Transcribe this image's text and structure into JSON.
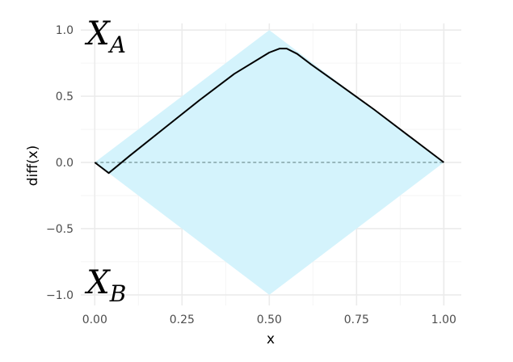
{
  "chart_data": {
    "type": "line",
    "xlabel": "x",
    "ylabel": "diff(x)",
    "xlim": [
      -0.04,
      1.05
    ],
    "ylim": [
      -1.08,
      1.05
    ],
    "x_ticks": [
      0.0,
      0.25,
      0.5,
      0.75,
      1.0
    ],
    "x_tick_labels": [
      "0.00",
      "0.25",
      "0.50",
      "0.75",
      "1.00"
    ],
    "y_ticks": [
      -1.0,
      -0.5,
      0.0,
      0.5,
      1.0
    ],
    "y_tick_labels": [
      "−1.0",
      "−0.5",
      "0.0",
      "0.5",
      "1.0"
    ],
    "grid": true,
    "region_labels": [
      {
        "base": "X",
        "sub": "A",
        "x": 0.0,
        "y": 1.0
      },
      {
        "base": "X",
        "sub": "B",
        "x": 0.0,
        "y": -1.0
      }
    ],
    "envelope": [
      [
        0,
        0
      ],
      [
        0.5,
        1.0
      ],
      [
        1.0,
        0
      ],
      [
        0.5,
        -1.0
      ]
    ],
    "reference_line": {
      "y": 0,
      "style": "dashed"
    },
    "series": [
      {
        "x": [
          0.0,
          0.04,
          0.1,
          0.2,
          0.3,
          0.4,
          0.5,
          0.53,
          0.55,
          0.58,
          0.62,
          0.7,
          0.8,
          0.9,
          1.0
        ],
        "y": [
          0.0,
          -0.08,
          0.05,
          0.26,
          0.47,
          0.67,
          0.83,
          0.86,
          0.86,
          0.82,
          0.74,
          0.59,
          0.4,
          0.2,
          0.0
        ]
      }
    ],
    "colors": {
      "envelope_fill": "#d4f3fc",
      "line": "#000000",
      "reference_line": "#5a7a7a",
      "grid_major": "#ebebeb",
      "grid_minor": "#f5f5f5"
    }
  }
}
